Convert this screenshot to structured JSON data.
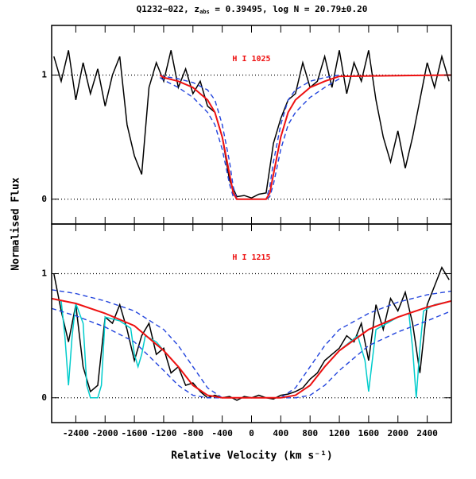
{
  "figure": {
    "title_prefix": "Q1232−022, z",
    "title_subscript": "abs",
    "title_suffix": " = 0.39495, log N = 20.79±0.20",
    "ylabel": "Normalised Flux",
    "xlabel": "Relative Velocity (km s⁻¹)"
  },
  "chart_data": [
    {
      "type": "line",
      "xlim": [
        -2730,
        2730
      ],
      "ylim": [
        -0.2,
        1.4
      ],
      "yticks": [
        0,
        1
      ],
      "xticks": [
        -2400,
        -2000,
        -1600,
        -1200,
        -800,
        -400,
        0,
        400,
        800,
        1200,
        1600,
        2000,
        2400
      ],
      "show_xtick_labels": false,
      "reference_lines": [
        0,
        1
      ],
      "annotation": {
        "text": "H I 1025",
        "x": 0,
        "y": 1.13,
        "color": "#ee1111"
      },
      "series": [
        {
          "color": "#000000",
          "dash": "none",
          "width": 1.5,
          "x": [
            -2700,
            -2600,
            -2500,
            -2400,
            -2300,
            -2200,
            -2100,
            -2000,
            -1900,
            -1800,
            -1700,
            -1600,
            -1500,
            -1400,
            -1300,
            -1200,
            -1100,
            -1000,
            -900,
            -800,
            -700,
            -600,
            -500,
            -400,
            -300,
            -200,
            -100,
            0,
            100,
            200,
            300,
            400,
            500,
            600,
            700,
            800,
            900,
            1000,
            1100,
            1200,
            1300,
            1400,
            1500,
            1600,
            1700,
            1800,
            1900,
            2000,
            2100,
            2200,
            2300,
            2400,
            2500,
            2600,
            2700
          ],
          "values": [
            1.15,
            0.95,
            1.2,
            0.8,
            1.1,
            0.85,
            1.05,
            0.75,
            1.0,
            1.15,
            0.6,
            0.35,
            0.2,
            0.9,
            1.1,
            0.95,
            1.2,
            0.9,
            1.05,
            0.85,
            0.95,
            0.75,
            0.7,
            0.5,
            0.15,
            0.02,
            0.03,
            0.01,
            0.04,
            0.05,
            0.45,
            0.65,
            0.8,
            0.85,
            1.1,
            0.9,
            0.95,
            1.15,
            0.9,
            1.2,
            0.85,
            1.1,
            0.95,
            1.2,
            0.8,
            0.5,
            0.3,
            0.55,
            0.25,
            0.5,
            0.8,
            1.1,
            0.9,
            1.15,
            0.95
          ]
        },
        {
          "color": "#2244dd",
          "dash": "6,4",
          "width": 1.4,
          "x": [
            -1250,
            -1200,
            -1000,
            -800,
            -600,
            -500,
            -400,
            -300,
            -250,
            -200,
            200,
            250,
            300,
            400,
            500,
            600,
            800,
            1000,
            1200,
            2730
          ],
          "values": [
            1,
            0.99,
            0.97,
            0.94,
            0.88,
            0.8,
            0.6,
            0.3,
            0.1,
            0,
            0,
            0.1,
            0.3,
            0.6,
            0.8,
            0.88,
            0.95,
            0.98,
            1,
            null
          ]
        },
        {
          "color": "#2244dd",
          "dash": "6,4",
          "width": 1.4,
          "x": [
            -1250,
            -1200,
            -1000,
            -800,
            -600,
            -500,
            -400,
            -300,
            -250,
            -200,
            200,
            250,
            300,
            400,
            500,
            600,
            800,
            1000,
            1200,
            2730
          ],
          "values": [
            0.98,
            0.96,
            0.9,
            0.82,
            0.7,
            0.6,
            0.4,
            0.12,
            0.02,
            0,
            0,
            0.02,
            0.12,
            0.4,
            0.6,
            0.7,
            0.82,
            0.9,
            0.97,
            null
          ]
        },
        {
          "color": "#ee1111",
          "dash": "none",
          "width": 2,
          "x": [
            -1250,
            -1200,
            -1000,
            -800,
            -600,
            -500,
            -400,
            -300,
            -250,
            -200,
            200,
            250,
            300,
            400,
            500,
            600,
            800,
            1000,
            1200,
            2730
          ],
          "values": [
            1,
            0.98,
            0.95,
            0.9,
            0.8,
            0.7,
            0.5,
            0.2,
            0.05,
            0,
            0,
            0.05,
            0.2,
            0.5,
            0.7,
            0.8,
            0.9,
            0.95,
            0.99,
            1
          ]
        }
      ]
    },
    {
      "type": "line",
      "xlim": [
        -2730,
        2730
      ],
      "ylim": [
        -0.2,
        1.4
      ],
      "yticks": [
        0,
        1
      ],
      "xticks": [
        -2400,
        -2000,
        -1600,
        -1200,
        -800,
        -400,
        0,
        400,
        800,
        1200,
        1600,
        2000,
        2400
      ],
      "show_xtick_labels": true,
      "reference_lines": [
        0,
        1
      ],
      "annotation": {
        "text": "H I 1215",
        "x": 0,
        "y": 1.13,
        "color": "#ee1111"
      },
      "series": [
        {
          "color": "#000000",
          "dash": "none",
          "width": 1.5,
          "x": [
            -2700,
            -2600,
            -2500,
            -2400,
            -2300,
            -2200,
            -2100,
            -2000,
            -1900,
            -1800,
            -1700,
            -1600,
            -1500,
            -1400,
            -1300,
            -1200,
            -1100,
            -1000,
            -900,
            -800,
            -700,
            -600,
            -500,
            -400,
            -300,
            -200,
            -100,
            0,
            100,
            200,
            300,
            400,
            500,
            600,
            700,
            800,
            900,
            1000,
            1100,
            1200,
            1300,
            1400,
            1500,
            1600,
            1700,
            1800,
            1900,
            2000,
            2100,
            2200,
            2300,
            2400,
            2500,
            2600,
            2700
          ],
          "values": [
            1.0,
            0.7,
            0.45,
            0.75,
            0.25,
            0.05,
            0.1,
            0.65,
            0.6,
            0.75,
            0.55,
            0.3,
            0.5,
            0.6,
            0.35,
            0.4,
            0.2,
            0.25,
            0.1,
            0.12,
            0.05,
            0.0,
            0.02,
            0.0,
            0.01,
            -0.02,
            0.01,
            0.0,
            0.02,
            0.0,
            -0.01,
            0.02,
            0.03,
            0.05,
            0.08,
            0.15,
            0.2,
            0.3,
            0.35,
            0.4,
            0.5,
            0.45,
            0.6,
            0.3,
            0.75,
            0.55,
            0.8,
            0.7,
            0.85,
            0.6,
            0.2,
            0.75,
            0.9,
            1.05,
            0.95
          ]
        },
        {
          "color": "#00cccc",
          "dash": "none",
          "width": 1.5,
          "x": [
            -2730,
            -2600,
            -2550,
            -2500,
            -2450,
            -2400,
            -2300,
            -2250,
            -2200,
            -2100,
            -2050,
            -2000,
            -1800,
            -1650,
            -1600,
            -1550,
            -1500,
            -1450,
            -1300,
            -1200,
            -1000,
            -800,
            -600,
            -400,
            0,
            400,
            600,
            800,
            1000,
            1200,
            1450,
            1550,
            1600,
            1650,
            1700,
            2000,
            2150,
            2200,
            2250,
            2300,
            2350,
            2500,
            2730
          ],
          "values": [
            0.8,
            0.78,
            0.5,
            0.1,
            0.5,
            0.76,
            0.6,
            0.1,
            0,
            0,
            0.1,
            0.65,
            0.62,
            0.56,
            0.35,
            0.25,
            0.35,
            0.5,
            0.45,
            0.38,
            0.25,
            0.1,
            0.02,
            0,
            0,
            0,
            0.02,
            0.1,
            0.25,
            0.38,
            0.5,
            0.3,
            0.05,
            0.3,
            0.55,
            0.65,
            0.68,
            0.4,
            0,
            0.4,
            0.7,
            0.75,
            0.78
          ]
        },
        {
          "color": "#2244dd",
          "dash": "6,4",
          "width": 1.4,
          "x": [
            -2730,
            -2400,
            -2000,
            -1600,
            -1200,
            -1000,
            -800,
            -600,
            -400,
            0,
            400,
            600,
            800,
            1000,
            1200,
            1600,
            2000,
            2400,
            2730
          ],
          "values": [
            0.87,
            0.84,
            0.78,
            0.7,
            0.55,
            0.42,
            0.25,
            0.08,
            0,
            0,
            0,
            0.08,
            0.25,
            0.42,
            0.55,
            0.68,
            0.77,
            0.83,
            0.86
          ]
        },
        {
          "color": "#2244dd",
          "dash": "6,4",
          "width": 1.4,
          "x": [
            -2730,
            -2400,
            -2000,
            -1600,
            -1200,
            -1000,
            -800,
            -600,
            -400,
            0,
            400,
            600,
            800,
            1000,
            1200,
            1600,
            2000,
            2400,
            2730
          ],
          "values": [
            0.72,
            0.66,
            0.57,
            0.45,
            0.22,
            0.1,
            0.02,
            0,
            0,
            0,
            0,
            0,
            0.02,
            0.1,
            0.22,
            0.42,
            0.53,
            0.62,
            0.7
          ]
        },
        {
          "color": "#ee1111",
          "dash": "none",
          "width": 2,
          "x": [
            -2730,
            -2400,
            -2000,
            -1600,
            -1200,
            -1000,
            -800,
            -600,
            -400,
            0,
            400,
            600,
            800,
            1000,
            1200,
            1600,
            2000,
            2400,
            2730
          ],
          "values": [
            0.8,
            0.76,
            0.68,
            0.58,
            0.38,
            0.25,
            0.1,
            0.02,
            0,
            0,
            0,
            0.02,
            0.1,
            0.25,
            0.38,
            0.55,
            0.65,
            0.73,
            0.78
          ]
        }
      ]
    }
  ]
}
